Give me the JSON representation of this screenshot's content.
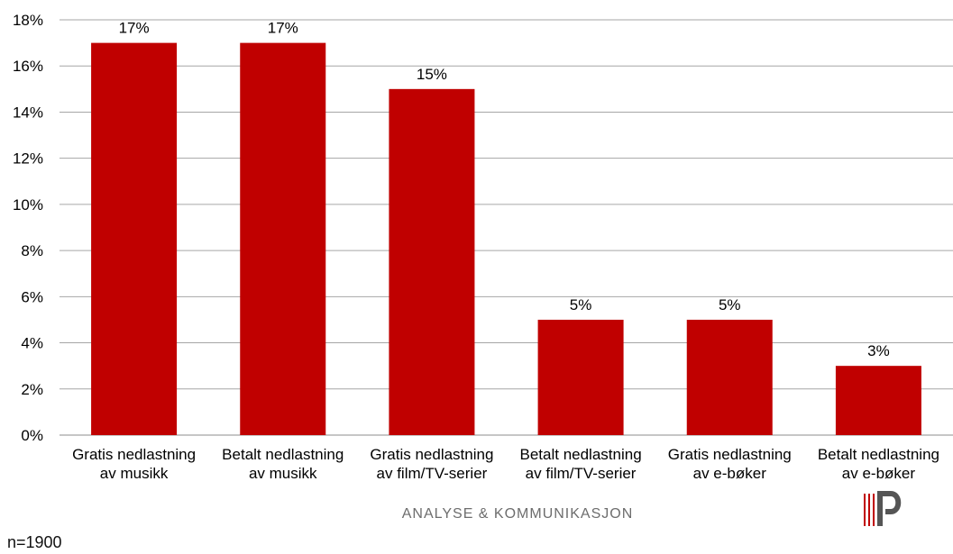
{
  "chart_data": {
    "type": "bar",
    "title": "",
    "xlabel": "",
    "ylabel": "",
    "categories": [
      [
        "Gratis nedlastning",
        "av musikk"
      ],
      [
        "Betalt nedlastning",
        "av musikk"
      ],
      [
        "Gratis nedlastning",
        "av film/TV-serier"
      ],
      [
        "Betalt nedlastning",
        "av film/TV-serier"
      ],
      [
        "Gratis nedlastning",
        "av e-bøker"
      ],
      [
        "Betalt nedlastning",
        "av e-bøker"
      ]
    ],
    "values": [
      17,
      17,
      15,
      5,
      5,
      3
    ],
    "data_labels": [
      "17%",
      "17%",
      "15%",
      "5%",
      "5%",
      "3%"
    ],
    "ylim": [
      0,
      18
    ],
    "yticks": [
      "0%",
      "2%",
      "4%",
      "6%",
      "8%",
      "10%",
      "12%",
      "14%",
      "16%",
      "18%"
    ],
    "grid": true,
    "bar_color": "#c00000"
  },
  "footer": {
    "brand_text": "ANALYSE & KOMMUNIKASJON",
    "sample_note": "n=1900",
    "logo_icon": "ap-logo-icon"
  }
}
